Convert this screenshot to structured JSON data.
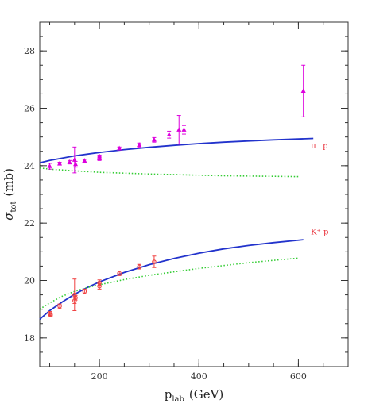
{
  "chart_data": {
    "type": "scatter",
    "xlabel": "p",
    "xlabel_sub": "lab",
    "xlabel_unit": "(GeV)",
    "ylabel": "σ",
    "ylabel_sub": "tot",
    "ylabel_unit": "(mb)",
    "xlim": [
      80,
      700
    ],
    "ylim": [
      17,
      29
    ],
    "x_ticks": [
      200,
      400,
      600
    ],
    "y_ticks": [
      18,
      20,
      22,
      24,
      26,
      28
    ],
    "grid": false,
    "annotations": [
      {
        "text": "π⁻ p",
        "x": 625,
        "y": 24.6,
        "color": "#e8303a"
      },
      {
        "text": "K⁺ p",
        "x": 625,
        "y": 21.6,
        "color": "#e8303a"
      }
    ],
    "series": [
      {
        "kind": "points",
        "marker": "triangle",
        "color": "#dd00dd",
        "points": [
          {
            "x": 100,
            "y": 23.98,
            "err": 0.1
          },
          {
            "x": 120,
            "y": 24.07,
            "err": 0.05
          },
          {
            "x": 140,
            "y": 24.12,
            "err": 0.06
          },
          {
            "x": 150,
            "y": 24.2,
            "err": 0.45
          },
          {
            "x": 152,
            "y": 24.05,
            "err": 0.1
          },
          {
            "x": 170,
            "y": 24.17,
            "err": 0.05
          },
          {
            "x": 200,
            "y": 24.25,
            "err": 0.07
          },
          {
            "x": 200,
            "y": 24.32,
            "err": 0.05
          },
          {
            "x": 240,
            "y": 24.6,
            "err": 0.05
          },
          {
            "x": 280,
            "y": 24.72,
            "err": 0.07
          },
          {
            "x": 310,
            "y": 24.9,
            "err": 0.08
          },
          {
            "x": 340,
            "y": 25.08,
            "err": 0.12
          },
          {
            "x": 360,
            "y": 25.25,
            "err": 0.5
          },
          {
            "x": 370,
            "y": 25.25,
            "err": 0.15
          },
          {
            "x": 610,
            "y": 26.6,
            "err": 0.9
          }
        ]
      },
      {
        "kind": "points",
        "marker": "circle",
        "color": "#f04040",
        "points": [
          {
            "x": 100,
            "y": 18.85,
            "err": 0.07
          },
          {
            "x": 102,
            "y": 18.8,
            "err": 0.05
          },
          {
            "x": 120,
            "y": 19.1,
            "err": 0.08
          },
          {
            "x": 150,
            "y": 19.3,
            "err": 0.1
          },
          {
            "x": 150,
            "y": 19.5,
            "err": 0.55
          },
          {
            "x": 152,
            "y": 19.4,
            "err": 0.08
          },
          {
            "x": 170,
            "y": 19.62,
            "err": 0.08
          },
          {
            "x": 200,
            "y": 19.8,
            "err": 0.1
          },
          {
            "x": 200,
            "y": 19.92,
            "err": 0.1
          },
          {
            "x": 240,
            "y": 20.25,
            "err": 0.08
          },
          {
            "x": 280,
            "y": 20.48,
            "err": 0.08
          },
          {
            "x": 310,
            "y": 20.65,
            "err": 0.2
          }
        ]
      },
      {
        "kind": "line",
        "style": "solid",
        "color": "#2233cc",
        "x": [
          80,
          100,
          150,
          200,
          250,
          300,
          350,
          400,
          450,
          500,
          550,
          600,
          630
        ],
        "y": [
          24.1,
          24.18,
          24.34,
          24.46,
          24.56,
          24.64,
          24.71,
          24.77,
          24.82,
          24.86,
          24.9,
          24.93,
          24.95
        ]
      },
      {
        "kind": "line",
        "style": "dotted",
        "color": "#33cc33",
        "x": [
          80,
          100,
          150,
          200,
          250,
          300,
          350,
          400,
          450,
          500,
          550,
          600
        ],
        "y": [
          23.92,
          23.88,
          23.82,
          23.77,
          23.74,
          23.71,
          23.69,
          23.67,
          23.65,
          23.64,
          23.63,
          23.62
        ]
      },
      {
        "kind": "line",
        "style": "solid",
        "color": "#2233cc",
        "x": [
          80,
          100,
          125,
          150,
          175,
          200,
          250,
          300,
          350,
          400,
          450,
          500,
          550,
          610
        ],
        "y": [
          18.65,
          18.95,
          19.25,
          19.52,
          19.75,
          19.95,
          20.28,
          20.55,
          20.77,
          20.95,
          21.1,
          21.22,
          21.32,
          21.42
        ]
      },
      {
        "kind": "line",
        "style": "dotted",
        "color": "#33cc33",
        "x": [
          80,
          100,
          125,
          150,
          175,
          200,
          250,
          300,
          350,
          400,
          450,
          500,
          550,
          600
        ],
        "y": [
          19.0,
          19.22,
          19.45,
          19.62,
          19.75,
          19.85,
          20.03,
          20.18,
          20.3,
          20.42,
          20.52,
          20.62,
          20.7,
          20.78
        ]
      }
    ]
  }
}
